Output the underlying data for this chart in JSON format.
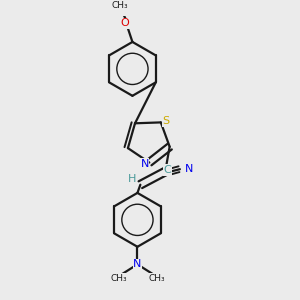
{
  "background_color": "#ebebeb",
  "bond_color": "#1a1a1a",
  "atom_colors": {
    "N": "#0000ee",
    "S": "#ccaa00",
    "O": "#dd0000",
    "C_gray": "#4a9a9a",
    "H": "#4a9a9a"
  },
  "figure_size": [
    3.0,
    3.0
  ],
  "dpi": 100,
  "xlim": [
    0.1,
    0.9
  ],
  "ylim": [
    0.02,
    0.98
  ]
}
